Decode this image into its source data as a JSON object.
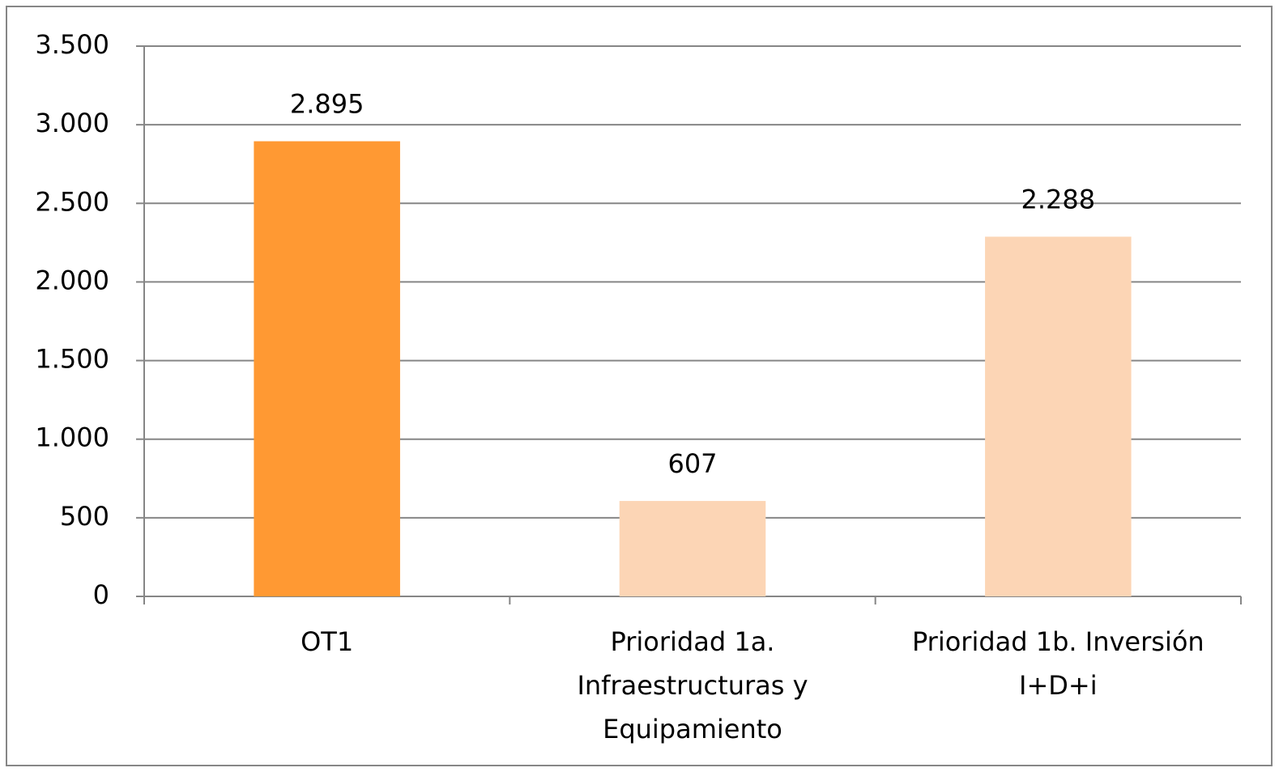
{
  "chart_data": {
    "type": "bar",
    "categories": [
      "OT1",
      "Prioridad 1a. Infraestructuras y Equipamiento",
      "Prioridad 1b. Inversión I+D+i"
    ],
    "values": [
      2895,
      607,
      2288
    ],
    "value_labels": [
      "2.895",
      "607",
      "2.288"
    ],
    "colors": [
      "#ff9933",
      "#fcd5b5",
      "#fcd5b5"
    ],
    "ylim": [
      0,
      3500
    ],
    "yticks": [
      0,
      500,
      {
        "value": 1000,
        "label": "1.000"
      },
      {
        "value": 1500,
        "label": "1.500"
      },
      {
        "value": 2000,
        "label": "2.000"
      },
      {
        "value": 2500,
        "label": "2.500"
      },
      {
        "value": 3000,
        "label": "3.000"
      },
      {
        "value": 3500,
        "label": "3.500"
      }
    ],
    "grid": true
  }
}
